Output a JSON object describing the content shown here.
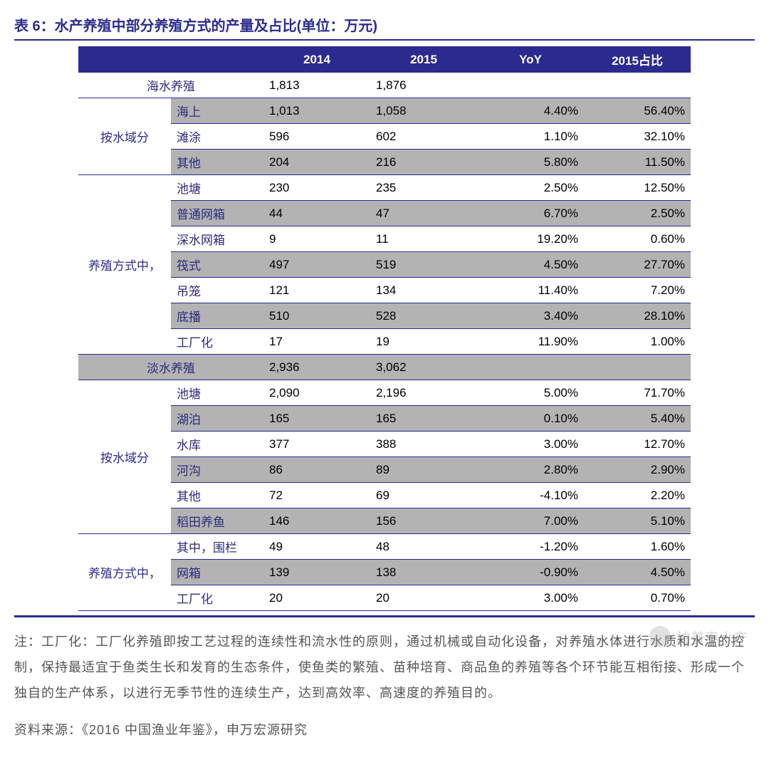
{
  "title": "表 6：水产养殖中部分养殖方式的产量及占比(单位：万元)",
  "columns": {
    "c1": "",
    "c2": "",
    "c3": "2014",
    "c4": "2015",
    "c5": "YoY",
    "c6": "2015占比"
  },
  "colors": {
    "header_bg": "#2b2b8f",
    "header_fg": "#ffffff",
    "band_gray": "#b3b3b3",
    "band_white": "#ffffff",
    "text_blue": "#2b2b7f",
    "rule": "#2b2b8f"
  },
  "rows": [
    {
      "section": "海水养殖",
      "label": "",
      "v2014": "1,813",
      "v2015": "1,876",
      "yoy": "",
      "pct": "",
      "band": "white",
      "span": 2
    },
    {
      "group": "按水域分",
      "label": "海上",
      "v2014": "1,013",
      "v2015": "1,058",
      "yoy": "4.40%",
      "pct": "56.40%",
      "band": "gray"
    },
    {
      "label": "滩涂",
      "v2014": "596",
      "v2015": "602",
      "yoy": "1.10%",
      "pct": "32.10%",
      "band": "white"
    },
    {
      "label": "其他",
      "v2014": "204",
      "v2015": "216",
      "yoy": "5.80%",
      "pct": "11.50%",
      "band": "gray"
    },
    {
      "group": "养殖方式中，",
      "label": "池塘",
      "v2014": "230",
      "v2015": "235",
      "yoy": "2.50%",
      "pct": "12.50%",
      "band": "white"
    },
    {
      "label": "普通网箱",
      "v2014": "44",
      "v2015": "47",
      "yoy": "6.70%",
      "pct": "2.50%",
      "band": "gray"
    },
    {
      "label": "深水网箱",
      "v2014": "9",
      "v2015": "11",
      "yoy": "19.20%",
      "pct": "0.60%",
      "band": "white"
    },
    {
      "label": "筏式",
      "v2014": "497",
      "v2015": "519",
      "yoy": "4.50%",
      "pct": "27.70%",
      "band": "gray"
    },
    {
      "label": "吊笼",
      "v2014": "121",
      "v2015": "134",
      "yoy": "11.40%",
      "pct": "7.20%",
      "band": "white"
    },
    {
      "label": "底播",
      "v2014": "510",
      "v2015": "528",
      "yoy": "3.40%",
      "pct": "28.10%",
      "band": "gray"
    },
    {
      "label": "工厂化",
      "v2014": "17",
      "v2015": "19",
      "yoy": "11.90%",
      "pct": "1.00%",
      "band": "white"
    },
    {
      "section": "淡水养殖",
      "label": "",
      "v2014": "2,936",
      "v2015": "3,062",
      "yoy": "",
      "pct": "",
      "band": "gray",
      "span": 2
    },
    {
      "group": "按水域分",
      "label": "池塘",
      "v2014": "2,090",
      "v2015": "2,196",
      "yoy": "5.00%",
      "pct": "71.70%",
      "band": "white"
    },
    {
      "label": "湖泊",
      "v2014": "165",
      "v2015": "165",
      "yoy": "0.10%",
      "pct": "5.40%",
      "band": "gray"
    },
    {
      "label": "水库",
      "v2014": "377",
      "v2015": "388",
      "yoy": "3.00%",
      "pct": "12.70%",
      "band": "white"
    },
    {
      "label": "河沟",
      "v2014": "86",
      "v2015": "89",
      "yoy": "2.80%",
      "pct": "2.90%",
      "band": "gray"
    },
    {
      "label": "其他",
      "v2014": "72",
      "v2015": "69",
      "yoy": "-4.10%",
      "pct": "2.20%",
      "band": "white"
    },
    {
      "label": "稻田养鱼",
      "v2014": "146",
      "v2015": "156",
      "yoy": "7.00%",
      "pct": "5.10%",
      "band": "gray"
    },
    {
      "group": "养殖方式中，",
      "label": "其中，围栏",
      "v2014": "49",
      "v2015": "48",
      "yoy": "-1.20%",
      "pct": "1.60%",
      "band": "white"
    },
    {
      "label": "网箱",
      "v2014": "139",
      "v2015": "138",
      "yoy": "-0.90%",
      "pct": "4.50%",
      "band": "gray"
    },
    {
      "label": "工厂化",
      "v2014": "20",
      "v2015": "20",
      "yoy": "3.00%",
      "pct": "0.70%",
      "band": "white"
    }
  ],
  "group_spans": {
    "按水域分_1": 3,
    "养殖方式中，_1": 7,
    "按水域分_2": 6,
    "养殖方式中，_2": 3
  },
  "note": "注：工厂化：工厂化养殖即按工艺过程的连续性和流水性的原则，通过机械或自动化设备，对养殖水体进行水质和水温的控制，保持最适宜于鱼类生长和发育的生态条件，使鱼类的繁殖、苗种培育、商品鱼的养殖等各个环节能互相衔接、形成一个独自的生产体系，以进行无季节性的连续生产，达到高效率、高速度的养殖目的。",
  "source": "资料来源：《2016 中国渔业年鉴》，申万宏源研究",
  "watermark": "柏普泰水产"
}
